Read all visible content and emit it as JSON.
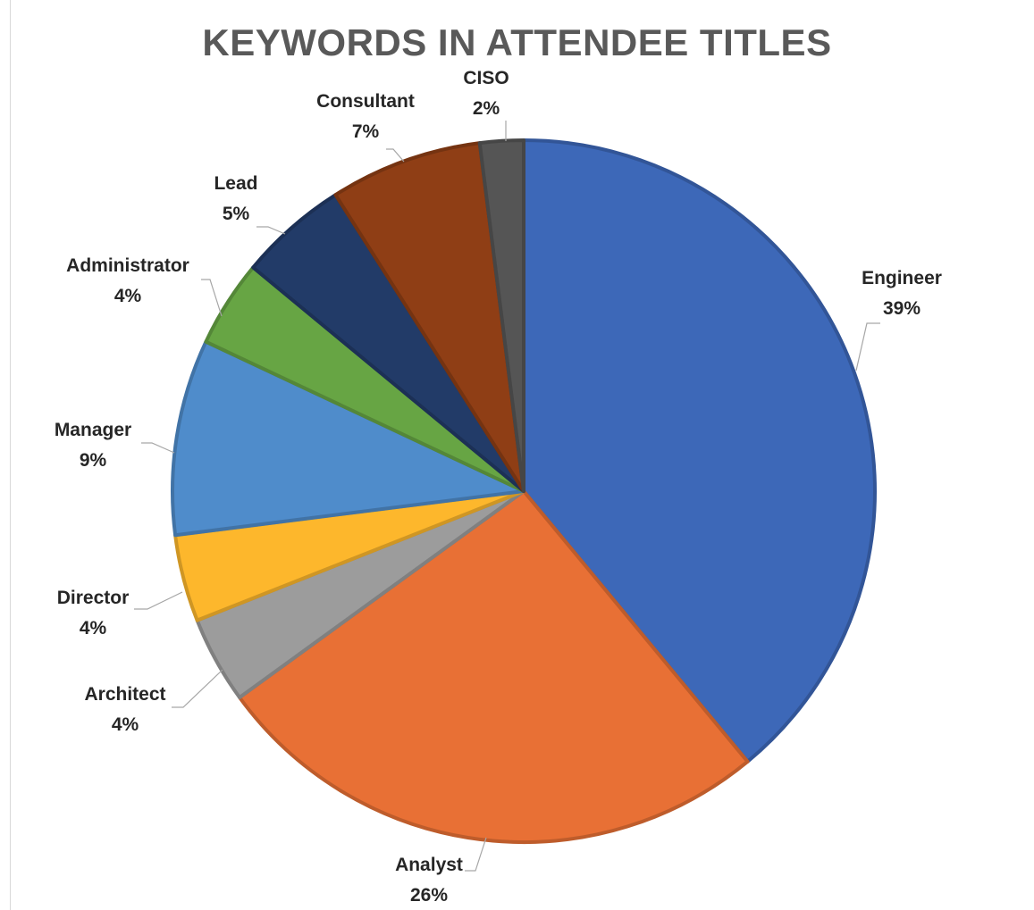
{
  "chart_data": {
    "type": "pie",
    "title": "KEYWORDS IN ATTENDEE TITLES",
    "slices": [
      {
        "label": "Engineer",
        "value": 39,
        "pct_label": "39%",
        "color": "#3d68b8"
      },
      {
        "label": "Analyst",
        "value": 26,
        "pct_label": "26%",
        "color": "#e87035"
      },
      {
        "label": "Architect",
        "value": 4,
        "pct_label": "4%",
        "color": "#9c9c9c"
      },
      {
        "label": "Director",
        "value": 4,
        "pct_label": "4%",
        "color": "#fdb72c"
      },
      {
        "label": "Manager",
        "value": 9,
        "pct_label": "9%",
        "color": "#4f8ccb"
      },
      {
        "label": "Administrator",
        "value": 4,
        "pct_label": "4%",
        "color": "#67a544"
      },
      {
        "label": "Lead",
        "value": 5,
        "pct_label": "5%",
        "color": "#223b68"
      },
      {
        "label": "Consultant",
        "value": 7,
        "pct_label": "7%",
        "color": "#8f3e15"
      },
      {
        "label": "CISO",
        "value": 2,
        "pct_label": "2%",
        "color": "#555555"
      }
    ]
  }
}
